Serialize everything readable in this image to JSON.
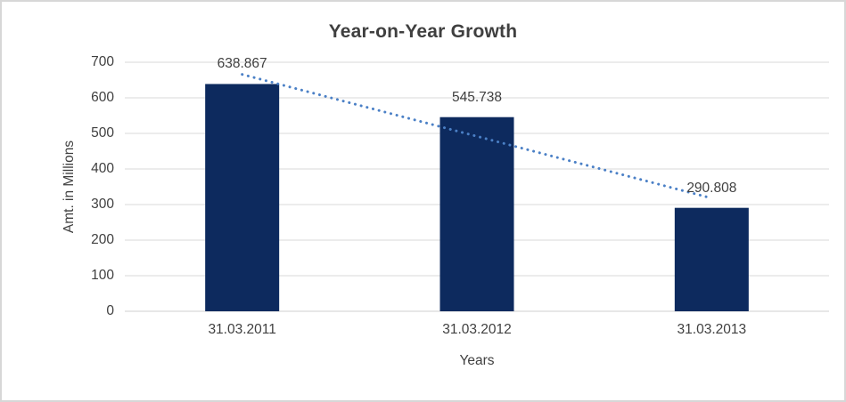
{
  "chart_data": {
    "type": "bar",
    "title": "Year-on-Year Growth",
    "categories": [
      "31.03.2011",
      "31.03.2012",
      "31.03.2013"
    ],
    "values": [
      638.867,
      545.738,
      290.808
    ],
    "data_labels": [
      "638.867",
      "545.738",
      "290.808"
    ],
    "xlabel": "Years",
    "ylabel": "Amt. in Millions",
    "ylim": [
      0,
      700
    ],
    "ytick_step": 100,
    "grid": true,
    "legend": false,
    "trendline": {
      "type": "linear",
      "style": "dotted"
    },
    "colors": {
      "bar": "#0D2A5E",
      "trendline": "#4B80C6",
      "gridline": "#D9D9D9",
      "axis_line": "#CFCFCF",
      "text": "#404040",
      "border": "#D7D7D7",
      "background": "#FFFFFF"
    }
  }
}
